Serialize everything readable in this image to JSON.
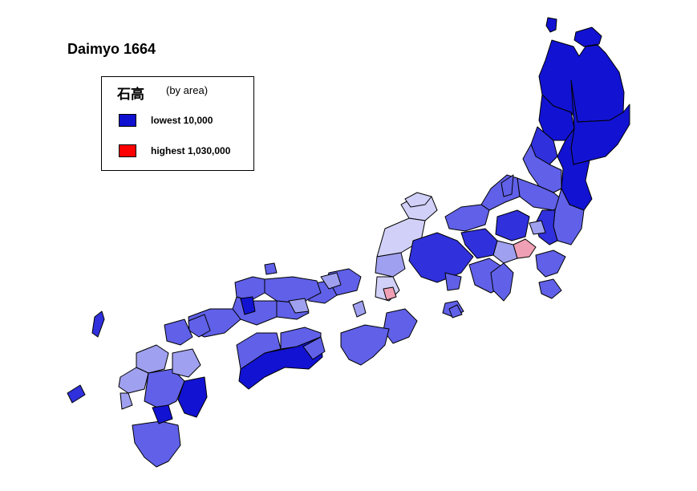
{
  "title": "Daimyo 1664",
  "legend": {
    "heading_kanji": "石高",
    "heading_sub": "(by area)",
    "items": [
      {
        "label": "lowest  10,000",
        "color": "#1010d0"
      },
      {
        "label": "highest  1,030,000",
        "color": "#ff0000"
      }
    ]
  },
  "colors": {
    "very_dark": "#1212d2",
    "dark": "#3030dc",
    "medium": "#6060e8",
    "light": "#a0a0f0",
    "pale": "#d0d0f8",
    "pink": "#f0a0b4",
    "background": "#ffffff"
  }
}
